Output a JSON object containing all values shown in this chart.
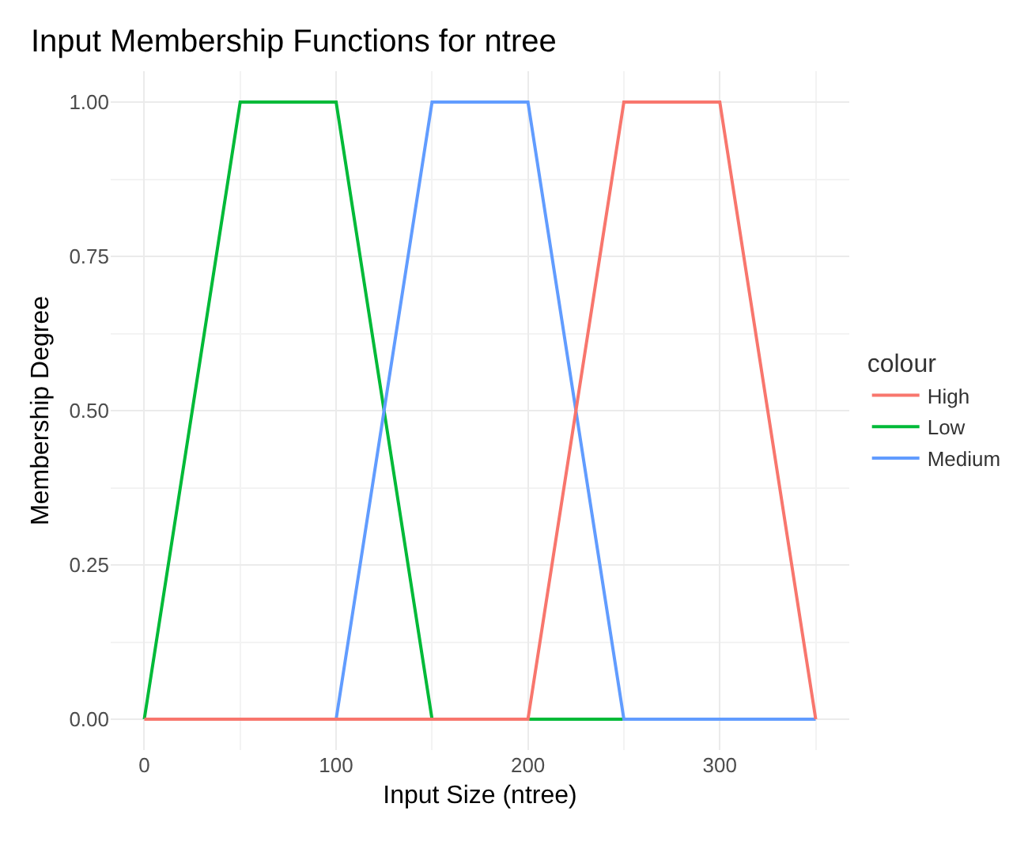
{
  "chart_data": {
    "type": "line",
    "title": "Input Membership Functions for ntree",
    "xlabel": "Input Size (ntree)",
    "ylabel": "Membership Degree",
    "legend_title": "colour",
    "series": [
      {
        "name": "High",
        "color": "#f8766d",
        "x": [
          0,
          200,
          250,
          300,
          350
        ],
        "values": [
          0,
          0,
          1,
          1,
          0
        ]
      },
      {
        "name": "Low",
        "color": "#00ba38",
        "x": [
          0,
          50,
          100,
          150,
          250
        ],
        "values": [
          0,
          1,
          1,
          0,
          0
        ]
      },
      {
        "name": "Medium",
        "color": "#619cff",
        "x": [
          100,
          150,
          200,
          250,
          350
        ],
        "values": [
          0,
          1,
          1,
          0,
          0
        ]
      }
    ],
    "xlim": [
      -17.5,
      367.5
    ],
    "xticks": [
      0,
      100,
      200,
      300
    ],
    "ylim": [
      -0.05,
      1.05
    ],
    "yticks": [
      {
        "value": 0,
        "label": "0.00"
      },
      {
        "value": 0.25,
        "label": "0.25"
      },
      {
        "value": 0.5,
        "label": "0.50"
      },
      {
        "value": 0.75,
        "label": "0.75"
      },
      {
        "value": 1,
        "label": "1.00"
      }
    ],
    "grid": true,
    "legend": "right",
    "marker": "none",
    "line_style": "solid"
  }
}
